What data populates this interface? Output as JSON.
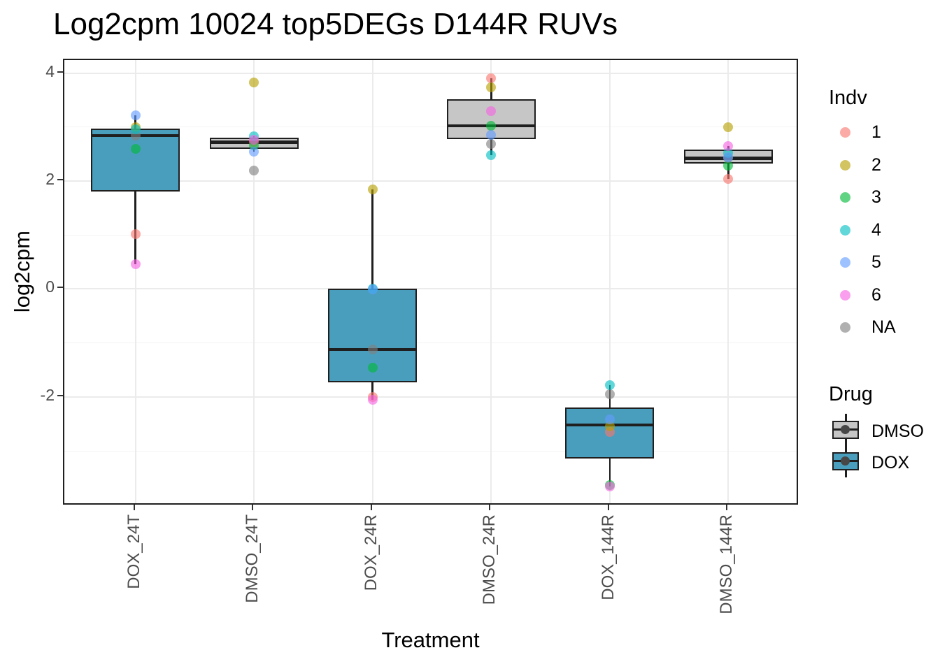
{
  "title": "Log2cpm 10024 top5DEGs D144R RUVs",
  "chart_data": {
    "type": "boxplot",
    "title": "Log2cpm 10024 top5DEGs D144R RUVs",
    "xlabel": "Treatment",
    "ylabel": "log2cpm",
    "ylim": [
      -4.02,
      4.24
    ],
    "yticks": [
      4,
      2,
      0,
      -2
    ],
    "yminor": [
      3,
      1,
      -1,
      -3
    ],
    "grid": true,
    "legend_position": "right",
    "categories": [
      "DOX_24T",
      "DMSO_24T",
      "DOX_24R",
      "DMSO_24R",
      "DOX_144R",
      "DMSO_144R"
    ],
    "point_order": [
      "1",
      "2",
      "3",
      "NA",
      "4",
      "5",
      "6"
    ],
    "groups": [
      {
        "treatment": "DOX_24T",
        "drug": "DOX",
        "box": {
          "q1": 1.81,
          "median": 2.84,
          "q3": 2.97,
          "whisker_low": 0.46,
          "whisker_high": 3.22
        },
        "points": {
          "1": 1.01,
          "2": 3.0,
          "3": 2.6,
          "4": 2.96,
          "5": 3.22,
          "6": 0.46,
          "NA": 2.84
        }
      },
      {
        "treatment": "DMSO_24T",
        "drug": "DMSO",
        "box": {
          "q1": 2.6,
          "median": 2.72,
          "q3": 2.8,
          "whisker_low": 2.54,
          "whisker_high": 2.83
        },
        "points": {
          "1": 2.72,
          "2": 3.82,
          "3": 2.66,
          "4": 2.83,
          "5": 2.54,
          "6": 2.77,
          "NA": 2.19
        }
      },
      {
        "treatment": "DOX_24R",
        "drug": "DOX",
        "box": {
          "q1": -1.73,
          "median": -1.12,
          "q3": 0.0,
          "whisker_low": -2.05,
          "whisker_high": 1.85
        },
        "points": {
          "1": -2.0,
          "2": 1.85,
          "3": -1.46,
          "4": 0.01,
          "5": -0.01,
          "6": -2.05,
          "NA": -1.12
        }
      },
      {
        "treatment": "DMSO_24R",
        "drug": "DMSO",
        "box": {
          "q1": 2.78,
          "median": 3.02,
          "q3": 3.52,
          "whisker_low": 2.48,
          "whisker_high": 3.9
        },
        "points": {
          "1": 3.9,
          "2": 3.74,
          "3": 3.02,
          "4": 2.48,
          "5": 2.86,
          "6": 3.3,
          "NA": 2.69
        }
      },
      {
        "treatment": "DOX_144R",
        "drug": "DOX",
        "box": {
          "q1": -3.14,
          "median": -2.52,
          "q3": -2.19,
          "whisker_low": -3.66,
          "whisker_high": -1.78
        },
        "points": {
          "1": -2.65,
          "2": -2.54,
          "3": -3.63,
          "4": -1.78,
          "5": -2.42,
          "6": -3.66,
          "NA": -1.95
        }
      },
      {
        "treatment": "DMSO_144R",
        "drug": "DMSO",
        "box": {
          "q1": 2.33,
          "median": 2.42,
          "q3": 2.58,
          "whisker_low": 2.04,
          "whisker_high": 2.65
        },
        "points": {
          "1": 2.04,
          "2": 3.0,
          "3": 2.29,
          "4": 2.52,
          "5": 2.44,
          "6": 2.65,
          "NA": 2.43
        }
      }
    ]
  },
  "legend": {
    "indv": {
      "title": "Indv",
      "items": [
        {
          "label": "1"
        },
        {
          "label": "2"
        },
        {
          "label": "3"
        },
        {
          "label": "4"
        },
        {
          "label": "5"
        },
        {
          "label": "6"
        },
        {
          "label": "NA"
        }
      ]
    },
    "drug": {
      "title": "Drug",
      "items": [
        {
          "label": "DMSO"
        },
        {
          "label": "DOX"
        }
      ]
    }
  },
  "colors": {
    "indv": {
      "1": "#F8766D",
      "2": "#B79F00",
      "3": "#00BA38",
      "4": "#00BFC4",
      "5": "#619CFF",
      "6": "#F564E2",
      "NA": "#7F7F7F"
    },
    "drug_fill": {
      "DOX": "#4A9EBD",
      "DMSO": "#C6C6C6"
    },
    "box_border": "#1f1f1f",
    "grid_major": "#EBEBEB",
    "grid_minor": "#F4F4F4",
    "axis_text": "#4d4d4d"
  }
}
